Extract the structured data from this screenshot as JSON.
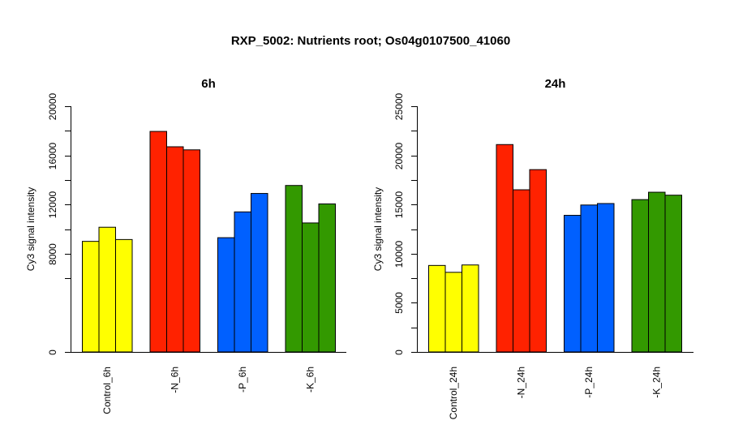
{
  "figure": {
    "title": "RXP_5002: Nutrients root; Os04g0107500_41060"
  },
  "chart_data": [
    {
      "type": "bar",
      "title": "6h",
      "xlabel": "",
      "ylabel": "Cy3 signal intensity",
      "ylim": [
        0,
        20000
      ],
      "yticks": [
        0,
        8000,
        12000,
        16000,
        20000
      ],
      "ytick_labels": [
        "0",
        "8000",
        "12000",
        "16000",
        "20000"
      ],
      "categories": [
        "Control_6h",
        "-N_6h",
        "-P_6h",
        "-K_6h"
      ],
      "group_colors": [
        "#ffff00",
        "#ff2200",
        "#0060ff",
        "#339900"
      ],
      "replicates": [
        [
          9000,
          10150,
          9150
        ],
        [
          17950,
          16700,
          16450
        ],
        [
          9300,
          11400,
          12900
        ],
        [
          13550,
          10500,
          12050
        ]
      ]
    },
    {
      "type": "bar",
      "title": "24h",
      "xlabel": "",
      "ylabel": "Cy3 signal intensity",
      "ylim": [
        0,
        25000
      ],
      "yticks": [
        0,
        5000,
        10000,
        15000,
        20000,
        25000
      ],
      "ytick_labels": [
        "0",
        "5000",
        "10000",
        "15000",
        "20000",
        "25000"
      ],
      "categories": [
        "Control_24h",
        "-N_24h",
        "-P_24h",
        "-K_24h"
      ],
      "group_colors": [
        "#ffff00",
        "#ff2200",
        "#0060ff",
        "#339900"
      ],
      "replicates": [
        [
          8800,
          8100,
          8850
        ],
        [
          21100,
          16500,
          18550
        ],
        [
          13900,
          14950,
          15100
        ],
        [
          15500,
          16250,
          15950
        ]
      ]
    }
  ]
}
